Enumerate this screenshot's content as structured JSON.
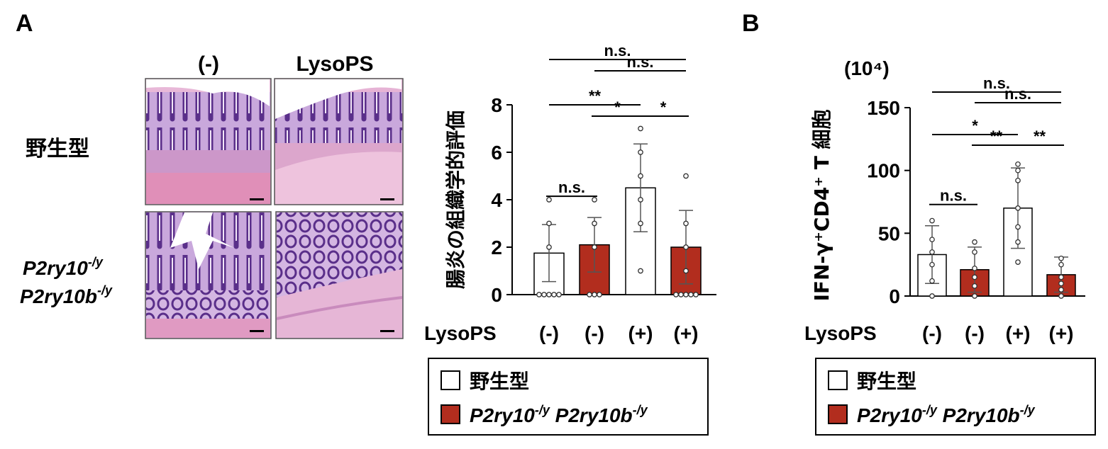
{
  "panel_a_label": "A",
  "panel_b_label": "B",
  "histology": {
    "col_headers": [
      "(-)",
      "LysoPS"
    ],
    "row_wt": "野生型",
    "row_ko_gene1": "P2ry10",
    "row_ko_sup1": "-/y",
    "row_ko_gene2": "P2ry10b",
    "row_ko_sup2": "-/y"
  },
  "legend": {
    "wt": "野生型",
    "ko_gene1": "P2ry10",
    "ko_sup1": "-/y",
    "ko_gene2": "P2ry10b",
    "ko_sup2": "-/y"
  },
  "colors": {
    "wt": "#ffffff",
    "ko": "#b22d1e"
  },
  "chart_data": [
    {
      "type": "bar",
      "ylabel": "腸炎の組織学的評価",
      "ylim": [
        0,
        8
      ],
      "yticks": [
        "0",
        "2",
        "4",
        "6",
        "8"
      ],
      "y_unit": "",
      "xrow_label": "LysoPS",
      "categories": [
        "(-)",
        "(-)",
        "(+)",
        "(+)"
      ],
      "groups": [
        "wt",
        "ko",
        "wt",
        "ko"
      ],
      "values": [
        1.75,
        2.1,
        4.5,
        2.0
      ],
      "errors": [
        1.2,
        1.15,
        1.85,
        1.55
      ],
      "points": [
        [
          0,
          0,
          0,
          0,
          0,
          2,
          3,
          4
        ],
        [
          0,
          0,
          0,
          2,
          3,
          4
        ],
        [
          1,
          3,
          4,
          5,
          6,
          7
        ],
        [
          0,
          0,
          0,
          0,
          0,
          1,
          2,
          3,
          5
        ]
      ],
      "significance": [
        {
          "from": 0,
          "to": 1,
          "label": "n.s."
        },
        {
          "from": 1,
          "to": 2,
          "label": "*"
        },
        {
          "from": 2,
          "to": 3,
          "label": "*"
        },
        {
          "from": 0,
          "to": 2,
          "label": "**"
        },
        {
          "from": 1,
          "to": 3,
          "label": "n.s."
        },
        {
          "from": 0,
          "to": 3,
          "label": "n.s."
        }
      ]
    },
    {
      "type": "bar",
      "ylabel": "IFN-γ⁺CD4⁺ T 細胞",
      "ylim": [
        0,
        150
      ],
      "yticks": [
        "0",
        "50",
        "100",
        "150"
      ],
      "y_unit": "(10⁴)",
      "xrow_label": "LysoPS",
      "categories": [
        "(-)",
        "(-)",
        "(+)",
        "(+)"
      ],
      "groups": [
        "wt",
        "ko",
        "wt",
        "ko"
      ],
      "values": [
        33,
        21,
        70,
        17
      ],
      "errors": [
        23,
        18,
        32,
        14
      ],
      "points": [
        [
          0,
          12,
          25,
          35,
          45,
          60
        ],
        [
          0,
          8,
          15,
          22,
          35,
          43
        ],
        [
          27,
          43,
          55,
          70,
          92,
          100,
          105
        ],
        [
          0,
          5,
          10,
          15,
          25,
          30
        ]
      ],
      "significance": [
        {
          "from": 0,
          "to": 1,
          "label": "n.s."
        },
        {
          "from": 1,
          "to": 2,
          "label": "**"
        },
        {
          "from": 2,
          "to": 3,
          "label": "**"
        },
        {
          "from": 0,
          "to": 2,
          "label": "*"
        },
        {
          "from": 1,
          "to": 3,
          "label": "n.s."
        },
        {
          "from": 0,
          "to": 3,
          "label": "n.s."
        }
      ]
    }
  ]
}
